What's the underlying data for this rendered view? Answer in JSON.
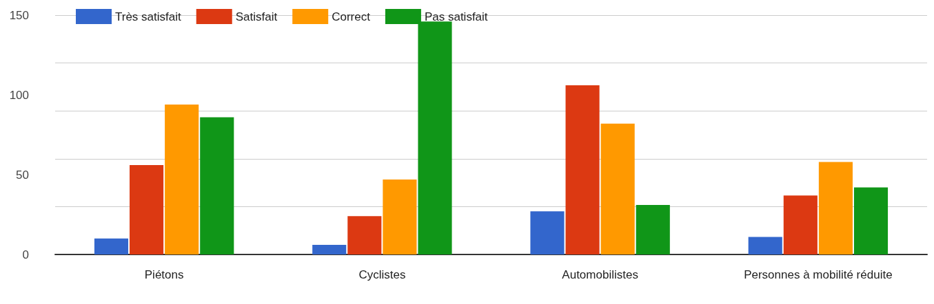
{
  "chart_data": {
    "type": "bar",
    "categories": [
      "Piétons",
      "Cyclistes",
      "Automobilistes",
      "Personnes à mobilité réduite"
    ],
    "series": [
      {
        "name": "Très satisfait",
        "color": "#3366cc",
        "values": [
          10,
          6,
          27,
          11
        ]
      },
      {
        "name": "Satisfait",
        "color": "#dc3912",
        "values": [
          56,
          24,
          106,
          37
        ]
      },
      {
        "name": "Correct",
        "color": "#ff9900",
        "values": [
          94,
          47,
          82,
          58
        ]
      },
      {
        "name": "Pas satisfait",
        "color": "#109618",
        "values": [
          86,
          146,
          31,
          42
        ]
      }
    ],
    "ylim": [
      0,
      150
    ],
    "yticks": [
      0,
      50,
      100,
      150
    ],
    "grid": "y",
    "legend": "top left"
  }
}
